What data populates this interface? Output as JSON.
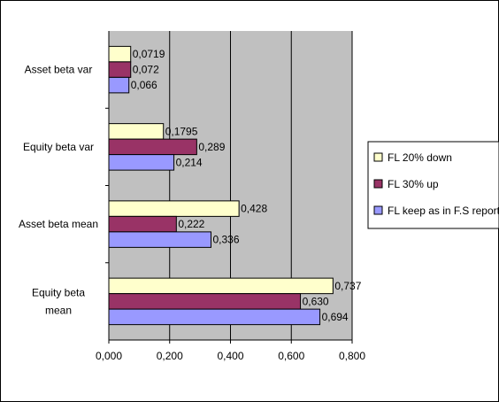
{
  "chart_data": {
    "type": "bar",
    "orientation": "horizontal",
    "categories": [
      "Asset beta var",
      "Equity beta var",
      "Asset beta mean",
      "Equity beta\nmean"
    ],
    "series": [
      {
        "name": "FL 20% down",
        "color": "#ffffcc",
        "values": [
          0.0719,
          0.1795,
          0.428,
          0.737
        ],
        "labels": [
          "0,0719",
          "0,1795",
          "0,428",
          "0,737"
        ]
      },
      {
        "name": "FL 30% up",
        "color": "#993366",
        "values": [
          0.072,
          0.289,
          0.222,
          0.63
        ],
        "labels": [
          "0,072",
          "0,289",
          "0,222",
          "0,630"
        ]
      },
      {
        "name": "FL keep as in F.S report",
        "color": "#9999ff",
        "values": [
          0.066,
          0.214,
          0.336,
          0.694
        ],
        "labels": [
          "0,066",
          "0,214",
          "0,336",
          "0,694"
        ]
      }
    ],
    "xlim": [
      0,
      0.8
    ],
    "xticks": [
      0,
      0.2,
      0.4,
      0.6,
      0.8
    ],
    "xtick_labels": [
      "0,000",
      "0,200",
      "0,400",
      "0,600",
      "0,800"
    ],
    "plot_background": "#c0c0c0",
    "grid": true,
    "legend_position": "right"
  }
}
